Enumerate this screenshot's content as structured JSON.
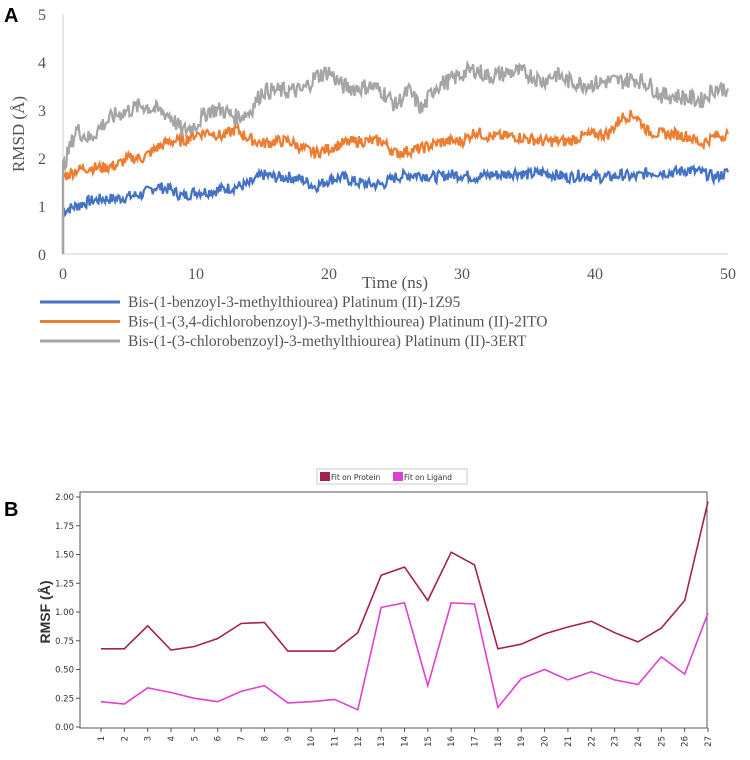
{
  "chart_data": [
    {
      "panel": "A",
      "type": "line",
      "xlabel": "Time (ns)",
      "ylabel": "RMSD (Å)",
      "xlim": [
        0,
        50
      ],
      "ylim": [
        0,
        5
      ],
      "xticks": [
        "0",
        "10",
        "20",
        "30",
        "40",
        "50"
      ],
      "yticks": [
        "0",
        "1",
        "2",
        "3",
        "4",
        "5"
      ],
      "legend_position": "bottom",
      "x": [
        0,
        1,
        2,
        3,
        4,
        5,
        6,
        7,
        8,
        9,
        10,
        11,
        12,
        13,
        14,
        15,
        16,
        17,
        18,
        19,
        20,
        21,
        22,
        23,
        24,
        25,
        26,
        27,
        28,
        29,
        30,
        31,
        32,
        33,
        34,
        35,
        36,
        37,
        38,
        39,
        40,
        41,
        42,
        43,
        44,
        45,
        46,
        47,
        48,
        49,
        50
      ],
      "series": [
        {
          "name": "Bis-(1-benzoyl-3-methylthiourea) Platinum (II)-1Z95",
          "color": "#4472c4",
          "values": [
            0.9,
            1.0,
            1.1,
            1.15,
            1.15,
            1.2,
            1.25,
            1.4,
            1.35,
            1.2,
            1.3,
            1.3,
            1.35,
            1.4,
            1.45,
            1.65,
            1.6,
            1.6,
            1.55,
            1.4,
            1.55,
            1.6,
            1.5,
            1.45,
            1.45,
            1.6,
            1.65,
            1.65,
            1.6,
            1.65,
            1.65,
            1.6,
            1.65,
            1.65,
            1.7,
            1.65,
            1.7,
            1.65,
            1.6,
            1.65,
            1.6,
            1.6,
            1.65,
            1.6,
            1.7,
            1.7,
            1.7,
            1.75,
            1.7,
            1.6,
            1.7
          ]
        },
        {
          "name": "Bis-(1-(3,4-dichlorobenzoyl)-3-methylthiourea) Platinum (II)-2ITO",
          "color": "#ed7d31",
          "values": [
            1.6,
            1.75,
            1.8,
            1.8,
            1.85,
            2.0,
            2.0,
            2.2,
            2.35,
            2.35,
            2.5,
            2.55,
            2.45,
            2.6,
            2.4,
            2.3,
            2.35,
            2.35,
            2.2,
            2.1,
            2.2,
            2.3,
            2.35,
            2.35,
            2.35,
            2.1,
            2.15,
            2.2,
            2.3,
            2.35,
            2.35,
            2.55,
            2.45,
            2.45,
            2.45,
            2.4,
            2.35,
            2.35,
            2.35,
            2.45,
            2.5,
            2.5,
            2.85,
            2.9,
            2.55,
            2.5,
            2.5,
            2.45,
            2.3,
            2.45,
            2.5
          ]
        },
        {
          "name": "Bis-(1-(3-chlorobenzoyl)-3-methylthiourea) Platinum (II)-3ERT",
          "color": "#a5a5a5",
          "values": [
            1.8,
            2.6,
            2.4,
            2.7,
            2.9,
            3.0,
            3.1,
            3.0,
            2.9,
            2.55,
            2.7,
            3.0,
            3.0,
            2.85,
            2.95,
            3.4,
            3.4,
            3.4,
            3.4,
            3.7,
            3.8,
            3.5,
            3.45,
            3.5,
            3.4,
            3.1,
            3.4,
            3.0,
            3.5,
            3.6,
            3.75,
            3.85,
            3.7,
            3.75,
            3.8,
            3.75,
            3.6,
            3.75,
            3.6,
            3.55,
            3.55,
            3.6,
            3.6,
            3.65,
            3.55,
            3.3,
            3.3,
            3.25,
            3.2,
            3.45,
            3.45
          ]
        }
      ]
    },
    {
      "panel": "B",
      "type": "line",
      "xlabel": "",
      "ylabel": "RMSF (Å)",
      "ylim": [
        0,
        2
      ],
      "yticks": [
        "0.00",
        "0.25",
        "0.50",
        "0.75",
        "1.00",
        "1.25",
        "1.50",
        "1.75",
        "2.00"
      ],
      "legend_position": "top-center",
      "categories": [
        "1",
        "2",
        "3",
        "4",
        "5",
        "6",
        "7",
        "8",
        "9",
        "10",
        "11",
        "12",
        "13",
        "14",
        "15",
        "16",
        "17",
        "18",
        "19",
        "20",
        "21",
        "22",
        "23",
        "24",
        "25",
        "26",
        "27"
      ],
      "series": [
        {
          "name": "Fit on Protein",
          "color": "#a3224f",
          "values": [
            0.68,
            0.68,
            0.88,
            0.67,
            0.7,
            0.77,
            0.9,
            0.91,
            0.66,
            0.66,
            0.66,
            0.82,
            1.32,
            1.39,
            1.1,
            1.52,
            1.41,
            0.68,
            0.72,
            0.81,
            0.87,
            0.92,
            0.82,
            0.74,
            0.86,
            1.1,
            1.96
          ]
        },
        {
          "name": "Fit on Ligand",
          "color": "#e040d0",
          "values": [
            0.22,
            0.2,
            0.34,
            0.3,
            0.25,
            0.22,
            0.31,
            0.36,
            0.21,
            0.22,
            0.24,
            0.15,
            1.04,
            1.08,
            0.36,
            1.08,
            1.07,
            0.17,
            0.42,
            0.5,
            0.41,
            0.48,
            0.41,
            0.37,
            0.61,
            0.46,
            0.99
          ]
        }
      ]
    }
  ],
  "panel_labels": [
    "A",
    "B"
  ]
}
